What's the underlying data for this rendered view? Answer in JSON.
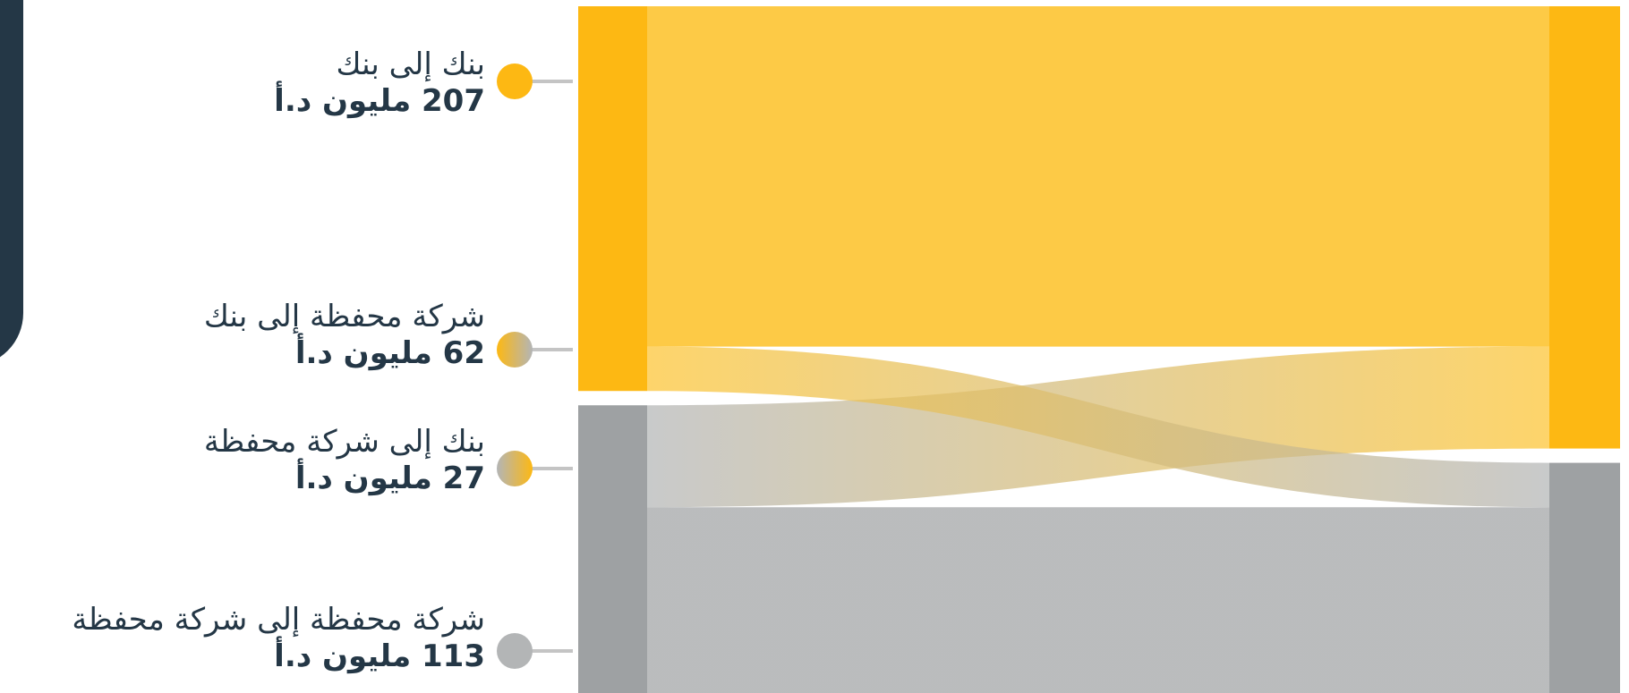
{
  "colors": {
    "bank": "#FDB813",
    "bank_band": "#FDC431",
    "portfolio": "#9EA1A3",
    "portfolio_band": "#B3B5B6",
    "connector": "#C4C4C4",
    "panel": "#243746"
  },
  "chart_data": {
    "type": "sankey",
    "unit": "مليون د.أ",
    "sources": [
      "بنك",
      "شركة محفظة"
    ],
    "targets": [
      "بنك",
      "شركة محفظة"
    ],
    "flows": [
      {
        "source": "بنك",
        "target": "بنك",
        "label": "بنك إلى بنك",
        "value": 207,
        "value_text": "207 مليون د.أ"
      },
      {
        "source": "شركة محفظة",
        "target": "بنك",
        "label": "شركة محفظة إلى بنك",
        "value": 62,
        "value_text": "62 مليون د.أ"
      },
      {
        "source": "بنك",
        "target": "شركة محفظة",
        "label": "بنك إلى شركة محفظة",
        "value": 27,
        "value_text": "27 مليون د.أ"
      },
      {
        "source": "شركة محفظة",
        "target": "شركة محفظة",
        "label": "شركة محفظة إلى شركة محفظة",
        "value": 113,
        "value_text": "113 مليون د.أ"
      }
    ]
  }
}
